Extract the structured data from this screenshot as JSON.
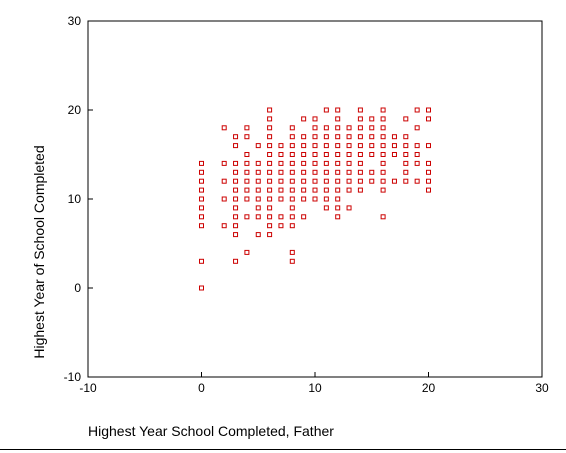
{
  "chart_data": {
    "type": "scatter",
    "title": "",
    "xlabel": "Highest Year School Completed, Father",
    "ylabel": "Highest Year of School Completed",
    "xlim": [
      -10,
      30
    ],
    "ylim": [
      -10,
      30
    ],
    "xticks": [
      -10,
      0,
      10,
      20,
      30
    ],
    "yticks": [
      -10,
      0,
      10,
      20,
      30
    ],
    "grid": false,
    "legend": "none",
    "marker": "hollow-square",
    "series_color": "#cc0000",
    "series": [
      {
        "points": [
          [
            0,
            0
          ],
          [
            0,
            3
          ],
          [
            0,
            7
          ],
          [
            0,
            8
          ],
          [
            0,
            9
          ],
          [
            0,
            10
          ],
          [
            0,
            11
          ],
          [
            0,
            12
          ],
          [
            0,
            13
          ],
          [
            0,
            14
          ],
          [
            2,
            7
          ],
          [
            2,
            10
          ],
          [
            2,
            12
          ],
          [
            2,
            14
          ],
          [
            2,
            18
          ],
          [
            3,
            3
          ],
          [
            3,
            6
          ],
          [
            3,
            7
          ],
          [
            3,
            8
          ],
          [
            3,
            9
          ],
          [
            3,
            10
          ],
          [
            3,
            11
          ],
          [
            3,
            12
          ],
          [
            3,
            13
          ],
          [
            3,
            14
          ],
          [
            3,
            16
          ],
          [
            3,
            17
          ],
          [
            4,
            4
          ],
          [
            4,
            8
          ],
          [
            4,
            10
          ],
          [
            4,
            11
          ],
          [
            4,
            12
          ],
          [
            4,
            13
          ],
          [
            4,
            14
          ],
          [
            4,
            15
          ],
          [
            4,
            17
          ],
          [
            4,
            18
          ],
          [
            5,
            6
          ],
          [
            5,
            8
          ],
          [
            5,
            9
          ],
          [
            5,
            10
          ],
          [
            5,
            11
          ],
          [
            5,
            12
          ],
          [
            5,
            13
          ],
          [
            5,
            14
          ],
          [
            5,
            16
          ],
          [
            6,
            6
          ],
          [
            6,
            7
          ],
          [
            6,
            8
          ],
          [
            6,
            9
          ],
          [
            6,
            10
          ],
          [
            6,
            11
          ],
          [
            6,
            12
          ],
          [
            6,
            13
          ],
          [
            6,
            14
          ],
          [
            6,
            15
          ],
          [
            6,
            16
          ],
          [
            6,
            17
          ],
          [
            6,
            18
          ],
          [
            6,
            19
          ],
          [
            6,
            20
          ],
          [
            7,
            7
          ],
          [
            7,
            8
          ],
          [
            7,
            10
          ],
          [
            7,
            11
          ],
          [
            7,
            12
          ],
          [
            7,
            13
          ],
          [
            7,
            14
          ],
          [
            7,
            15
          ],
          [
            7,
            16
          ],
          [
            8,
            3
          ],
          [
            8,
            4
          ],
          [
            8,
            7
          ],
          [
            8,
            8
          ],
          [
            8,
            9
          ],
          [
            8,
            10
          ],
          [
            8,
            11
          ],
          [
            8,
            12
          ],
          [
            8,
            13
          ],
          [
            8,
            14
          ],
          [
            8,
            15
          ],
          [
            8,
            16
          ],
          [
            8,
            17
          ],
          [
            8,
            18
          ],
          [
            9,
            8
          ],
          [
            9,
            10
          ],
          [
            9,
            11
          ],
          [
            9,
            12
          ],
          [
            9,
            13
          ],
          [
            9,
            14
          ],
          [
            9,
            15
          ],
          [
            9,
            16
          ],
          [
            9,
            17
          ],
          [
            9,
            19
          ],
          [
            10,
            10
          ],
          [
            10,
            11
          ],
          [
            10,
            12
          ],
          [
            10,
            13
          ],
          [
            10,
            14
          ],
          [
            10,
            15
          ],
          [
            10,
            16
          ],
          [
            10,
            17
          ],
          [
            10,
            18
          ],
          [
            10,
            19
          ],
          [
            11,
            9
          ],
          [
            11,
            10
          ],
          [
            11,
            11
          ],
          [
            11,
            12
          ],
          [
            11,
            13
          ],
          [
            11,
            14
          ],
          [
            11,
            15
          ],
          [
            11,
            16
          ],
          [
            11,
            17
          ],
          [
            11,
            18
          ],
          [
            11,
            20
          ],
          [
            12,
            8
          ],
          [
            12,
            9
          ],
          [
            12,
            10
          ],
          [
            12,
            11
          ],
          [
            12,
            12
          ],
          [
            12,
            13
          ],
          [
            12,
            14
          ],
          [
            12,
            15
          ],
          [
            12,
            16
          ],
          [
            12,
            17
          ],
          [
            12,
            18
          ],
          [
            12,
            19
          ],
          [
            12,
            20
          ],
          [
            13,
            9
          ],
          [
            13,
            11
          ],
          [
            13,
            12
          ],
          [
            13,
            13
          ],
          [
            13,
            14
          ],
          [
            13,
            15
          ],
          [
            13,
            16
          ],
          [
            13,
            17
          ],
          [
            13,
            18
          ],
          [
            14,
            11
          ],
          [
            14,
            12
          ],
          [
            14,
            13
          ],
          [
            14,
            14
          ],
          [
            14,
            15
          ],
          [
            14,
            16
          ],
          [
            14,
            17
          ],
          [
            14,
            18
          ],
          [
            14,
            19
          ],
          [
            14,
            20
          ],
          [
            15,
            12
          ],
          [
            15,
            13
          ],
          [
            15,
            15
          ],
          [
            15,
            16
          ],
          [
            15,
            17
          ],
          [
            15,
            18
          ],
          [
            15,
            19
          ],
          [
            16,
            8
          ],
          [
            16,
            11
          ],
          [
            16,
            12
          ],
          [
            16,
            13
          ],
          [
            16,
            14
          ],
          [
            16,
            15
          ],
          [
            16,
            16
          ],
          [
            16,
            17
          ],
          [
            16,
            18
          ],
          [
            16,
            19
          ],
          [
            16,
            20
          ],
          [
            17,
            12
          ],
          [
            17,
            15
          ],
          [
            17,
            16
          ],
          [
            17,
            17
          ],
          [
            18,
            12
          ],
          [
            18,
            13
          ],
          [
            18,
            14
          ],
          [
            18,
            15
          ],
          [
            18,
            16
          ],
          [
            18,
            17
          ],
          [
            18,
            19
          ],
          [
            19,
            12
          ],
          [
            19,
            14
          ],
          [
            19,
            15
          ],
          [
            19,
            16
          ],
          [
            19,
            18
          ],
          [
            19,
            20
          ],
          [
            20,
            11
          ],
          [
            20,
            12
          ],
          [
            20,
            13
          ],
          [
            20,
            14
          ],
          [
            20,
            16
          ],
          [
            20,
            19
          ],
          [
            20,
            20
          ]
        ]
      }
    ]
  }
}
